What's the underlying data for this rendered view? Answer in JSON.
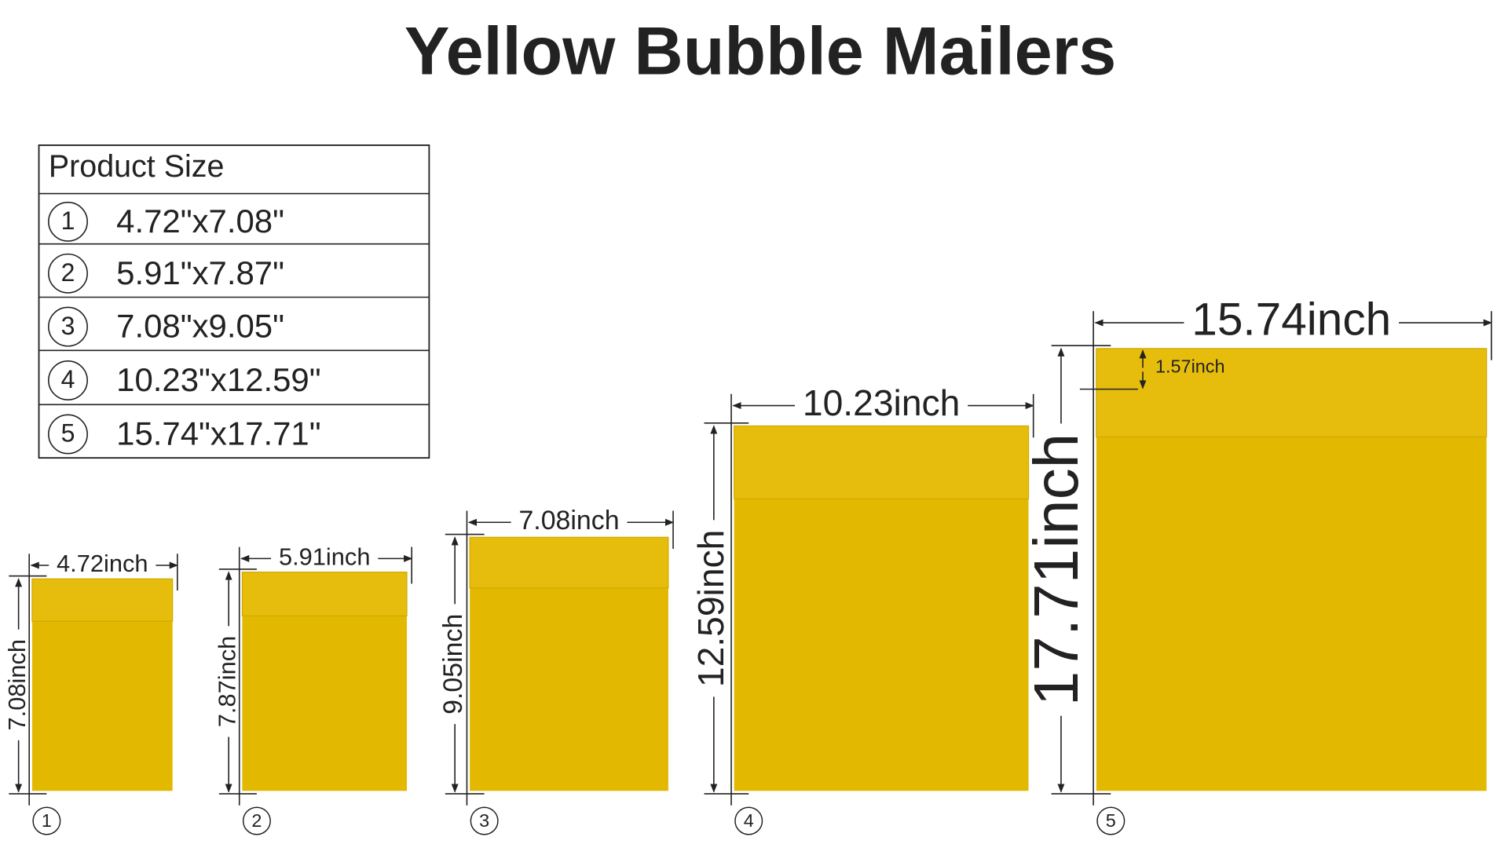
{
  "title": "Yellow Bubble Mailers",
  "table": {
    "header": "Product Size",
    "rows": [
      {
        "number": "1",
        "size": "4.72\"x7.08\""
      },
      {
        "number": "2",
        "size": "5.91\"x7.87\""
      },
      {
        "number": "3",
        "size": "7.08\"x9.05\""
      },
      {
        "number": "4",
        "size": "10.23\"x12.59\""
      },
      {
        "number": "5",
        "size": "15.74\"x17.71\""
      }
    ]
  },
  "mailers": [
    {
      "number": "1",
      "width": "4.72inch",
      "height": "7.08inch"
    },
    {
      "number": "2",
      "width": "5.91inch",
      "height": "7.87inch"
    },
    {
      "number": "3",
      "width": "7.08inch",
      "height": "9.05inch"
    },
    {
      "number": "4",
      "width": "10.23inch",
      "height": "12.59inch"
    },
    {
      "number": "5",
      "width": "15.74inch",
      "height": "17.71inch",
      "flap": "1.57inch"
    }
  ]
}
